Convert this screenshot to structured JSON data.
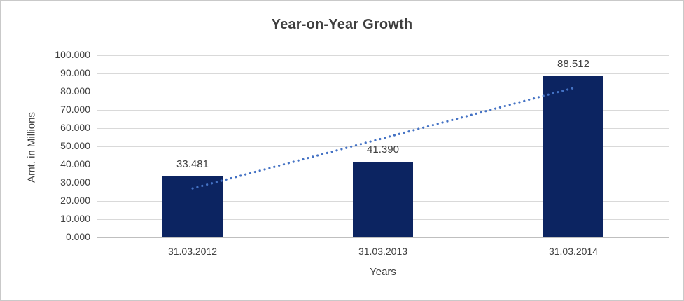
{
  "chart_data": {
    "type": "bar",
    "title": "Year-on-Year Growth",
    "xlabel": "Years",
    "ylabel": "Amt. in Millions",
    "categories": [
      "31.03.2012",
      "31.03.2013",
      "31.03.2014"
    ],
    "values": [
      33.481,
      41.39,
      88.512
    ],
    "data_labels": [
      "33.481",
      "41.390",
      "88.512"
    ],
    "ylim": [
      0,
      100
    ],
    "ytick_step": 10,
    "ytick_labels": [
      "0.000",
      "10.000",
      "20.000",
      "30.000",
      "40.000",
      "50.000",
      "60.000",
      "70.000",
      "80.000",
      "90.000",
      "100.000"
    ],
    "grid": true,
    "legend": "none",
    "bar_color": "#0c2461",
    "trendline": {
      "type": "linear",
      "start_value": 26.9,
      "end_value": 82.0,
      "color": "#4472c4",
      "style": "dotted"
    }
  },
  "colors": {
    "text": "#404040",
    "title_text": "#3f3f3f",
    "gridline": "#d9d9d9",
    "axis_line": "#bfbfbf",
    "frame_border": "#c9c9c9",
    "background": "#ffffff"
  }
}
